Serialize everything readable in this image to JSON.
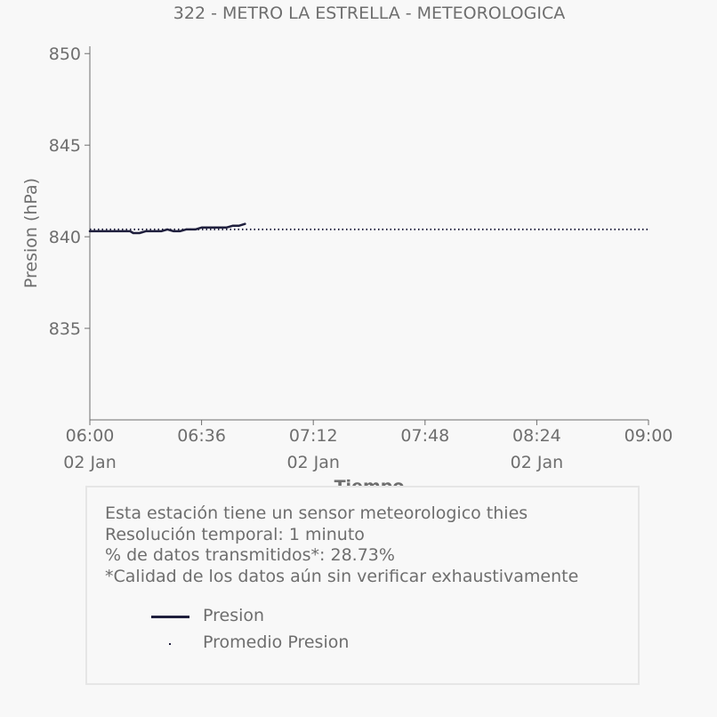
{
  "chart_data": {
    "type": "line",
    "title": "322 - METRO LA ESTRELLA - METEOROLOGICA",
    "xlabel": "Tiempo",
    "ylabel": "Presion (hPa)",
    "ylim": [
      830,
      850.4
    ],
    "xlim": [
      "06:00",
      "09:00"
    ],
    "x_ticks": [
      {
        "time": "06:00",
        "date": "02 Jan"
      },
      {
        "time": "06:36",
        "date": ""
      },
      {
        "time": "07:12",
        "date": "02 Jan"
      },
      {
        "time": "07:48",
        "date": ""
      },
      {
        "time": "08:24",
        "date": "02 Jan"
      },
      {
        "time": "09:00",
        "date": ""
      }
    ],
    "y_ticks": [
      "835",
      "840",
      "845",
      "850"
    ],
    "grid": false,
    "legend_placement": "below",
    "series": [
      {
        "name": "Presion",
        "style": "solid",
        "color": "#1f1f3d",
        "x": [
          "06:00",
          "06:04",
          "06:07",
          "06:10",
          "06:13",
          "06:14",
          "06:16",
          "06:18",
          "06:19",
          "06:21",
          "06:23",
          "06:25",
          "06:27",
          "06:29",
          "06:31",
          "06:34",
          "06:36",
          "06:38",
          "06:40",
          "06:42",
          "06:44",
          "06:46",
          "06:48",
          "06:50"
        ],
        "y": [
          840.3,
          840.3,
          840.3,
          840.3,
          840.3,
          840.2,
          840.2,
          840.3,
          840.3,
          840.3,
          840.3,
          840.4,
          840.3,
          840.3,
          840.4,
          840.4,
          840.5,
          840.5,
          840.5,
          840.5,
          840.5,
          840.6,
          840.6,
          840.7
        ]
      },
      {
        "name": "Promedio Presion",
        "style": "dotted",
        "color": "#1f1f3d",
        "x": [
          "06:00",
          "09:00"
        ],
        "y": [
          840.4,
          840.4
        ]
      }
    ]
  },
  "info": {
    "lines": [
      "Esta estación tiene un sensor meteorologico thies",
      "Resolución temporal: 1 minuto",
      "% de datos transmitidos*: 28.73%",
      "*Calidad de los datos aún sin verificar exhaustivamente"
    ]
  },
  "legend": {
    "items": [
      "Presion",
      "Promedio Presion"
    ]
  },
  "colors": {
    "text": "#6e6e6e",
    "series": "#1f1f3d",
    "background": "#f8f8f8",
    "box_border": "#e6e6e6"
  }
}
